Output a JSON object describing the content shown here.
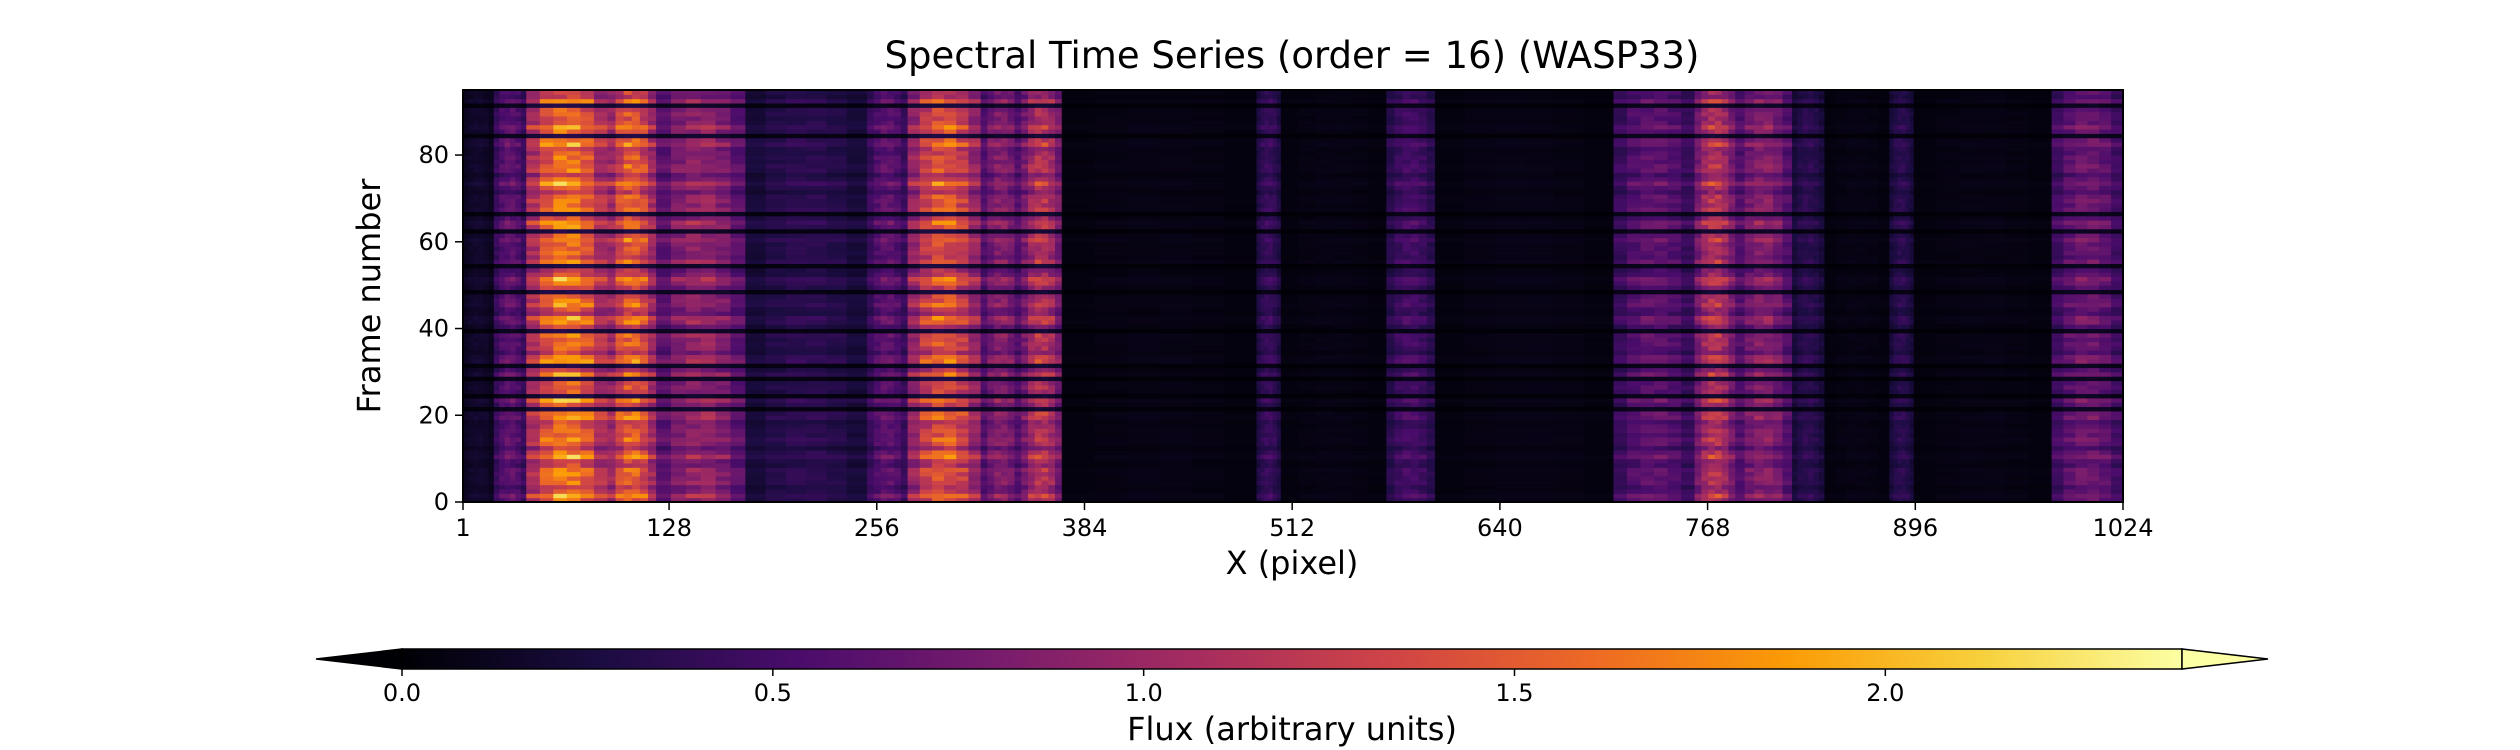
{
  "chart_data": {
    "type": "heatmap",
    "title": "Spectral Time Series (order = 16) (WASP33)",
    "xlabel": "X (pixel)",
    "ylabel": "Frame number",
    "x_ticks": [
      "1",
      "128",
      "256",
      "384",
      "512",
      "640",
      "768",
      "896",
      "1024"
    ],
    "x_tick_values": [
      1,
      128,
      256,
      384,
      512,
      640,
      768,
      896,
      1024
    ],
    "y_ticks": [
      "0",
      "20",
      "40",
      "60",
      "80"
    ],
    "y_tick_values": [
      0,
      20,
      40,
      60,
      80
    ],
    "xlim": [
      1,
      1024
    ],
    "ylim": [
      0,
      95
    ],
    "colormap": "inferno",
    "colorbar": {
      "label": "Flux (arbitrary units)",
      "ticks": [
        "0.0",
        "0.5",
        "1.0",
        "1.5",
        "2.0"
      ],
      "tick_values": [
        0.0,
        0.5,
        1.0,
        1.5,
        2.0
      ],
      "range": [
        0.0,
        2.4
      ],
      "extend": "both",
      "orientation": "horizontal",
      "colors": [
        "#000004",
        "#1b0c41",
        "#4a0c6b",
        "#781c6d",
        "#a52c60",
        "#cf4446",
        "#ed6925",
        "#fb9b06",
        "#f7d13d",
        "#fcffa4"
      ]
    },
    "spectral_bands": [
      {
        "x_start": 1,
        "x_end": 20,
        "peak_flux": 0.25
      },
      {
        "x_start": 20,
        "x_end": 40,
        "peak_flux": 0.9
      },
      {
        "x_start": 40,
        "x_end": 90,
        "peak_flux": 2.3
      },
      {
        "x_start": 90,
        "x_end": 120,
        "peak_flux": 2.1
      },
      {
        "x_start": 120,
        "x_end": 175,
        "peak_flux": 1.3
      },
      {
        "x_start": 175,
        "x_end": 250,
        "peak_flux": 0.5
      },
      {
        "x_start": 250,
        "x_end": 275,
        "peak_flux": 0.9
      },
      {
        "x_start": 275,
        "x_end": 320,
        "peak_flux": 2.0
      },
      {
        "x_start": 320,
        "x_end": 345,
        "peak_flux": 1.2
      },
      {
        "x_start": 345,
        "x_end": 370,
        "peak_flux": 1.6
      },
      {
        "x_start": 370,
        "x_end": 490,
        "peak_flux": 0.1
      },
      {
        "x_start": 490,
        "x_end": 505,
        "peak_flux": 0.6
      },
      {
        "x_start": 505,
        "x_end": 570,
        "peak_flux": 0.1
      },
      {
        "x_start": 570,
        "x_end": 600,
        "peak_flux": 0.7
      },
      {
        "x_start": 600,
        "x_end": 710,
        "peak_flux": 0.1
      },
      {
        "x_start": 710,
        "x_end": 760,
        "peak_flux": 0.9
      },
      {
        "x_start": 760,
        "x_end": 785,
        "peak_flux": 1.6
      },
      {
        "x_start": 785,
        "x_end": 820,
        "peak_flux": 1.2
      },
      {
        "x_start": 820,
        "x_end": 840,
        "peak_flux": 0.5
      },
      {
        "x_start": 840,
        "x_end": 880,
        "peak_flux": 0.1
      },
      {
        "x_start": 880,
        "x_end": 895,
        "peak_flux": 0.5
      },
      {
        "x_start": 895,
        "x_end": 980,
        "peak_flux": 0.1
      },
      {
        "x_start": 980,
        "x_end": 1024,
        "peak_flux": 1.0
      }
    ],
    "dark_frames": [
      21,
      24,
      28,
      31,
      39,
      48,
      54,
      62,
      66,
      84,
      91
    ]
  }
}
